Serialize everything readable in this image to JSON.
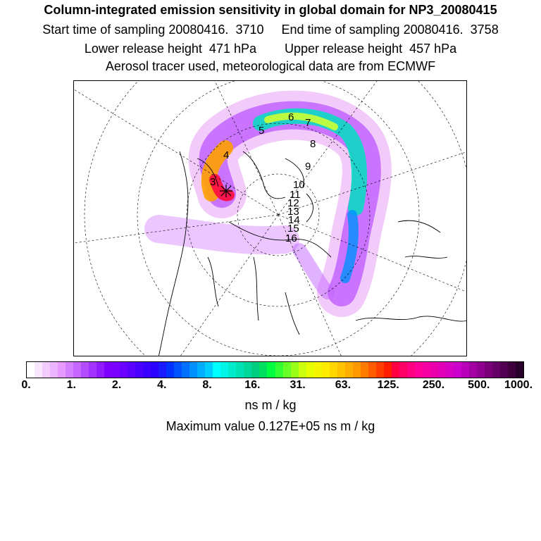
{
  "header": {
    "title": "Column-integrated emission sensitivity in global domain for NP3_20080415",
    "line1": "Start time of sampling 20080416.  3710     End time of sampling 20080416.  3758",
    "line2": "Lower release height  471 hPa        Upper release height  457 hPa",
    "line3": "Aerosol tracer used, meteorological data are from ECMWF"
  },
  "map": {
    "projection": "north-polar-stereographic",
    "day_labels": [
      "3",
      "4",
      "5",
      "6",
      "7",
      "8",
      "9",
      "10",
      "11",
      "12",
      "13",
      "14",
      "15",
      "16"
    ]
  },
  "colorbar": {
    "ticks": [
      "0.",
      "1.",
      "2.",
      "4.",
      "8.",
      "16.",
      "31.",
      "63.",
      "125.",
      "250.",
      "500.",
      "1000."
    ],
    "colors": [
      "#ffffff",
      "#f9e6ff",
      "#f3ccff",
      "#ecb3ff",
      "#e699ff",
      "#d580ff",
      "#c466ff",
      "#b34dff",
      "#a333ff",
      "#921aff",
      "#8000ff",
      "#7a00ff",
      "#6a00ff",
      "#5a00ff",
      "#4a00ff",
      "#3a00ff",
      "#2a00ff",
      "#1a1aff",
      "#0033ff",
      "#0052ff",
      "#0070ff",
      "#008fff",
      "#00adff",
      "#00ccff",
      "#00ffff",
      "#00f5e6",
      "#00ebcc",
      "#00e1b3",
      "#00d799",
      "#00cd80",
      "#00e060",
      "#00ff40",
      "#33ff33",
      "#66ff26",
      "#99ff1a",
      "#ccff0d",
      "#e6ff00",
      "#f5f500",
      "#ffeb00",
      "#ffd600",
      "#ffc200",
      "#ffad00",
      "#ff9900",
      "#ff7a00",
      "#ff5c00",
      "#ff3d00",
      "#ff1f00",
      "#ff0040",
      "#ff0066",
      "#ff0080",
      "#ff0099",
      "#f500a3",
      "#eb00ad",
      "#e000b8",
      "#d600c2",
      "#cc00cc",
      "#b800b8",
      "#a300a3",
      "#8f008f",
      "#7a007a",
      "#660066",
      "#520052",
      "#3d003d",
      "#290029"
    ],
    "unit": "ns m / kg"
  },
  "max_value_text": "Maximum value  0.127E+05 ns m / kg"
}
